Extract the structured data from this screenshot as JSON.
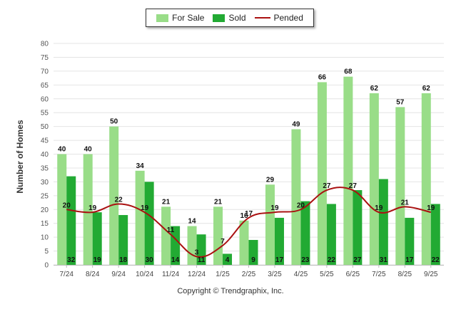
{
  "chart_data": {
    "type": "bar",
    "categories": [
      "7/24",
      "8/24",
      "9/24",
      "10/24",
      "11/24",
      "12/24",
      "1/25",
      "2/25",
      "3/25",
      "4/25",
      "5/25",
      "6/25",
      "7/25",
      "8/25",
      "9/25"
    ],
    "series": [
      {
        "name": "For Sale",
        "kind": "bar",
        "color": "#99dd88",
        "values": [
          40,
          40,
          50,
          34,
          21,
          14,
          21,
          16,
          29,
          49,
          66,
          68,
          62,
          57,
          62
        ]
      },
      {
        "name": "Sold",
        "kind": "bar",
        "color": "#22aa33",
        "values": [
          32,
          19,
          18,
          30,
          14,
          11,
          4,
          9,
          17,
          23,
          22,
          27,
          31,
          17,
          22
        ]
      },
      {
        "name": "Pended",
        "kind": "line",
        "color": "#aa1111",
        "values": [
          20,
          19,
          22,
          19,
          11,
          3,
          7,
          17,
          19,
          20,
          27,
          27,
          19,
          21,
          19
        ]
      }
    ],
    "ylabel": "Number of Homes",
    "xlabel": "",
    "ylim": [
      0,
      80
    ],
    "yticks": [
      0,
      5,
      10,
      15,
      20,
      25,
      30,
      35,
      40,
      45,
      50,
      55,
      60,
      65,
      70,
      75,
      80
    ],
    "legend_position": "top-center"
  },
  "footer": {
    "copyright": "Copyright © Trendgraphix, Inc."
  }
}
